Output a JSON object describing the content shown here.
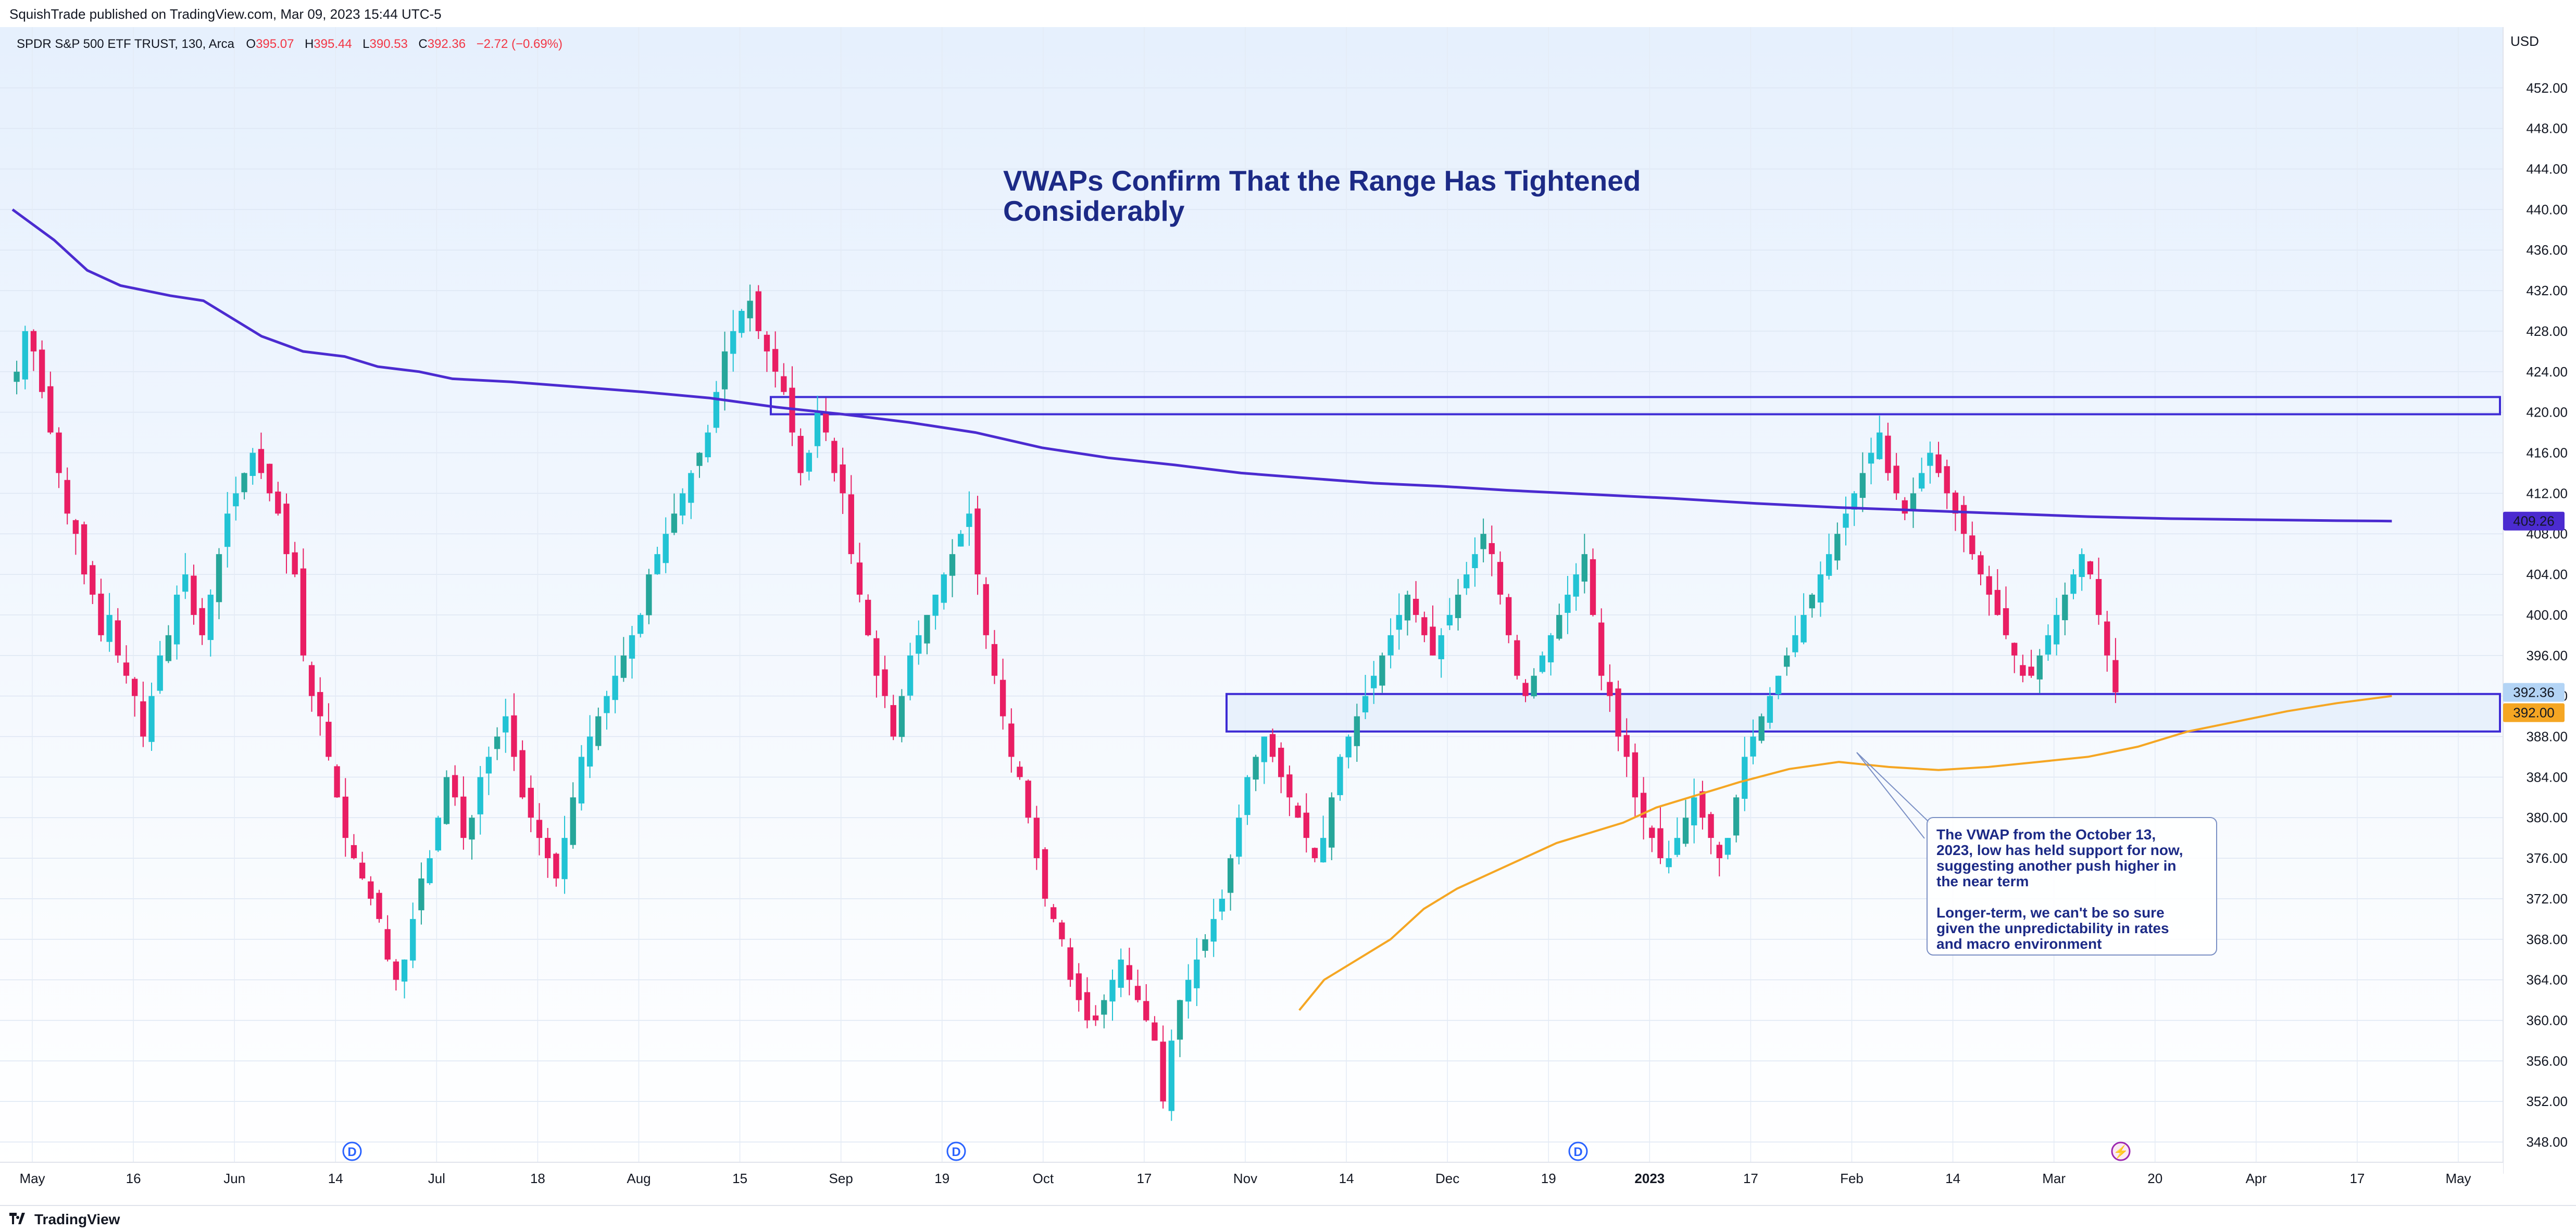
{
  "header": {
    "published": "SquishTrade published on TradingView.com, Mar 09, 2023 15:44 UTC-5"
  },
  "legend": {
    "symbol": "SPDR S&P 500 ETF TRUST, 130, Arca",
    "o_label": "O",
    "o_value": "395.07",
    "h_label": "H",
    "h_value": "395.44",
    "l_label": "L",
    "l_value": "390.53",
    "c_label": "C",
    "c_value": "392.36",
    "change": "−2.72 (−0.69%)"
  },
  "footer": {
    "brand": "TradingView"
  },
  "colors": {
    "up": "#26a69a",
    "up_alt": "#22c3d4",
    "down": "#e91e63",
    "vwap_long": "#4b2bd0",
    "vwap_short": "#f5a623",
    "box_stroke": "#3d2bd4",
    "box_fill": "#e3eefb",
    "text_blue": "#1c2a86"
  },
  "chart_data": {
    "type": "candlestick",
    "title": "VWAPs Confirm That the Range Has Tightened Considerably",
    "title_lines": [
      "VWAPs Confirm That the Range Has Tightened",
      "Considerably"
    ],
    "currency": "USD",
    "ylim": [
      346,
      458
    ],
    "y_ticks": [
      "348.00",
      "352.00",
      "356.00",
      "360.00",
      "364.00",
      "368.00",
      "372.00",
      "376.00",
      "380.00",
      "384.00",
      "388.00",
      "392.00",
      "396.00",
      "400.00",
      "404.00",
      "408.00",
      "412.00",
      "416.00",
      "420.00",
      "424.00",
      "428.00",
      "432.00",
      "436.00",
      "440.00",
      "444.00",
      "448.00",
      "452.00"
    ],
    "x_ticks": [
      "May",
      "16",
      "Jun",
      "14",
      "Jul",
      "18",
      "Aug",
      "15",
      "Sep",
      "19",
      "Oct",
      "17",
      "Nov",
      "14",
      "Dec",
      "19",
      "2023",
      "17",
      "Feb",
      "14",
      "Mar",
      "20",
      "Apr",
      "17",
      "May"
    ],
    "x_ticks_bold": [
      "2023"
    ],
    "price_labels": [
      {
        "label": "409.26",
        "role": "long-vwap"
      },
      {
        "label": "392.36",
        "role": "last-close"
      },
      {
        "label": "392.00",
        "role": "short-vwap"
      }
    ],
    "closes": [
      424,
      428,
      426,
      422,
      418,
      414,
      410,
      408,
      404,
      402,
      398,
      400,
      396,
      394,
      392,
      388,
      392,
      396,
      398,
      402,
      404,
      400,
      398,
      402,
      406,
      410,
      412,
      414,
      416,
      414,
      412,
      410,
      406,
      404,
      396,
      392,
      390,
      386,
      382,
      378,
      376,
      374,
      372,
      370,
      366,
      364,
      366,
      370,
      374,
      376,
      380,
      384,
      382,
      378,
      380,
      384,
      386,
      388,
      390,
      386,
      382,
      380,
      378,
      376,
      374,
      378,
      382,
      386,
      388,
      390,
      392,
      394,
      396,
      398,
      400,
      404,
      406,
      408,
      410,
      412,
      414,
      416,
      418,
      422,
      426,
      428,
      430,
      431,
      428,
      426,
      424,
      422,
      418,
      414,
      416,
      420,
      418,
      414,
      412,
      406,
      402,
      398,
      394,
      392,
      388,
      392,
      396,
      398,
      400,
      402,
      404,
      406,
      408,
      410,
      404,
      398,
      394,
      390,
      386,
      384,
      380,
      376,
      372,
      370,
      368,
      364,
      362,
      360,
      360,
      362,
      364,
      366,
      364,
      362,
      360,
      358,
      352,
      358,
      362,
      364,
      366,
      368,
      370,
      372,
      376,
      380,
      384,
      386,
      388,
      386,
      384,
      382,
      380,
      378,
      376,
      378,
      382,
      386,
      388,
      390,
      392,
      394,
      396,
      398,
      400,
      402,
      400,
      398,
      396,
      398,
      400,
      402,
      404,
      406,
      408,
      406,
      402,
      398,
      394,
      392,
      394,
      396,
      398,
      400,
      402,
      404,
      406,
      400,
      394,
      392,
      388,
      386,
      382,
      380,
      378,
      376,
      376,
      378,
      380,
      382,
      380,
      378,
      376,
      378,
      382,
      386,
      388,
      390,
      392,
      394,
      396,
      398,
      400,
      402,
      404,
      406,
      408,
      410,
      412,
      414,
      416,
      418,
      414,
      412,
      410,
      412,
      414,
      416,
      414,
      412,
      410,
      408,
      406,
      404,
      402,
      400,
      398,
      396,
      394,
      394,
      396,
      398,
      400,
      402,
      404,
      406,
      404,
      400,
      396,
      392.36
    ],
    "vwap_long_points": [
      [
        0,
        440
      ],
      [
        25,
        437
      ],
      [
        45,
        434
      ],
      [
        65,
        432.5
      ],
      [
        95,
        431.5
      ],
      [
        115,
        431
      ],
      [
        135,
        429
      ],
      [
        150,
        427.5
      ],
      [
        175,
        426
      ],
      [
        200,
        425.5
      ],
      [
        220,
        424.5
      ],
      [
        245,
        424
      ],
      [
        265,
        423.3
      ],
      [
        300,
        423
      ],
      [
        340,
        422.5
      ],
      [
        380,
        422
      ],
      [
        420,
        421.4
      ],
      [
        460,
        420.5
      ],
      [
        500,
        419.8
      ],
      [
        540,
        419
      ],
      [
        580,
        418
      ],
      [
        620,
        416.5
      ],
      [
        660,
        415.5
      ],
      [
        700,
        414.8
      ],
      [
        740,
        414
      ],
      [
        780,
        413.5
      ],
      [
        820,
        413
      ],
      [
        860,
        412.7
      ],
      [
        900,
        412.3
      ],
      [
        950,
        411.9
      ],
      [
        1000,
        411.5
      ],
      [
        1050,
        411
      ],
      [
        1100,
        410.6
      ],
      [
        1150,
        410.3
      ],
      [
        1200,
        410
      ],
      [
        1250,
        409.7
      ],
      [
        1300,
        409.5
      ],
      [
        1350,
        409.4
      ],
      [
        1400,
        409.3
      ],
      [
        1433,
        409.26
      ]
    ],
    "vwap_short_points": [
      [
        775,
        361
      ],
      [
        790,
        364
      ],
      [
        810,
        366
      ],
      [
        830,
        368
      ],
      [
        850,
        371
      ],
      [
        870,
        373
      ],
      [
        890,
        374.5
      ],
      [
        910,
        376
      ],
      [
        930,
        377.5
      ],
      [
        950,
        378.5
      ],
      [
        970,
        379.5
      ],
      [
        990,
        381
      ],
      [
        1010,
        382
      ],
      [
        1040,
        383.5
      ],
      [
        1070,
        384.8
      ],
      [
        1100,
        385.5
      ],
      [
        1130,
        385
      ],
      [
        1160,
        384.7
      ],
      [
        1190,
        385
      ],
      [
        1220,
        385.5
      ],
      [
        1250,
        386
      ],
      [
        1280,
        387
      ],
      [
        1310,
        388.5
      ],
      [
        1340,
        389.5
      ],
      [
        1370,
        390.5
      ],
      [
        1400,
        391.3
      ],
      [
        1433,
        392
      ]
    ],
    "boxes": [
      {
        "name": "upper-resistance-zone",
        "y_top": 421.5,
        "y_bottom": 419.8
      },
      {
        "name": "lower-support-zone",
        "y_top": 392.2,
        "y_bottom": 388.5
      }
    ],
    "event_markers": [
      {
        "label": "D",
        "kind": "dividend"
      },
      {
        "label": "D",
        "kind": "dividend"
      },
      {
        "label": "D",
        "kind": "dividend"
      },
      {
        "label": "⚡",
        "kind": "earnings"
      }
    ],
    "annotation": {
      "lines": [
        "The VWAP from the October 13,",
        "2023, low has held support for now,",
        "suggesting another push higher in",
        "the near term",
        "",
        "Longer-term, we can't be so sure",
        "given the unpredictability in rates",
        "and macro environment"
      ]
    }
  }
}
